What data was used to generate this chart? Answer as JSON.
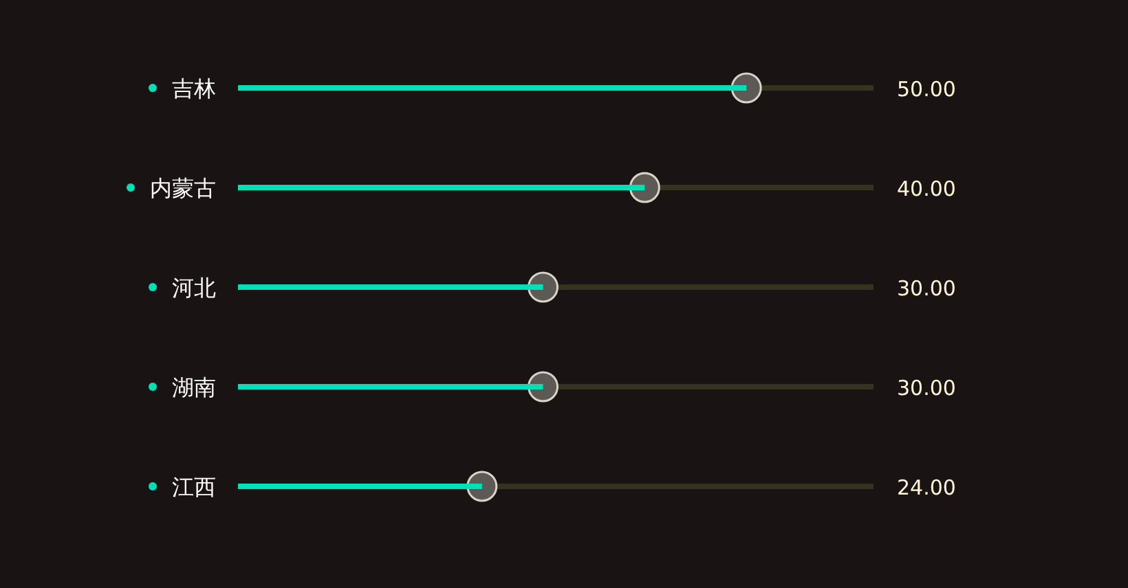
{
  "chart_data": {
    "type": "bar",
    "orientation": "horizontal",
    "categories": [
      "吉林",
      "内蒙古",
      "河北",
      "湖南",
      "江西"
    ],
    "values": [
      50,
      40,
      30,
      30,
      24
    ],
    "value_labels": [
      "50.00",
      "40.00",
      "30.00",
      "30.00",
      "24.00"
    ],
    "color": "#00e0b8"
  }
}
